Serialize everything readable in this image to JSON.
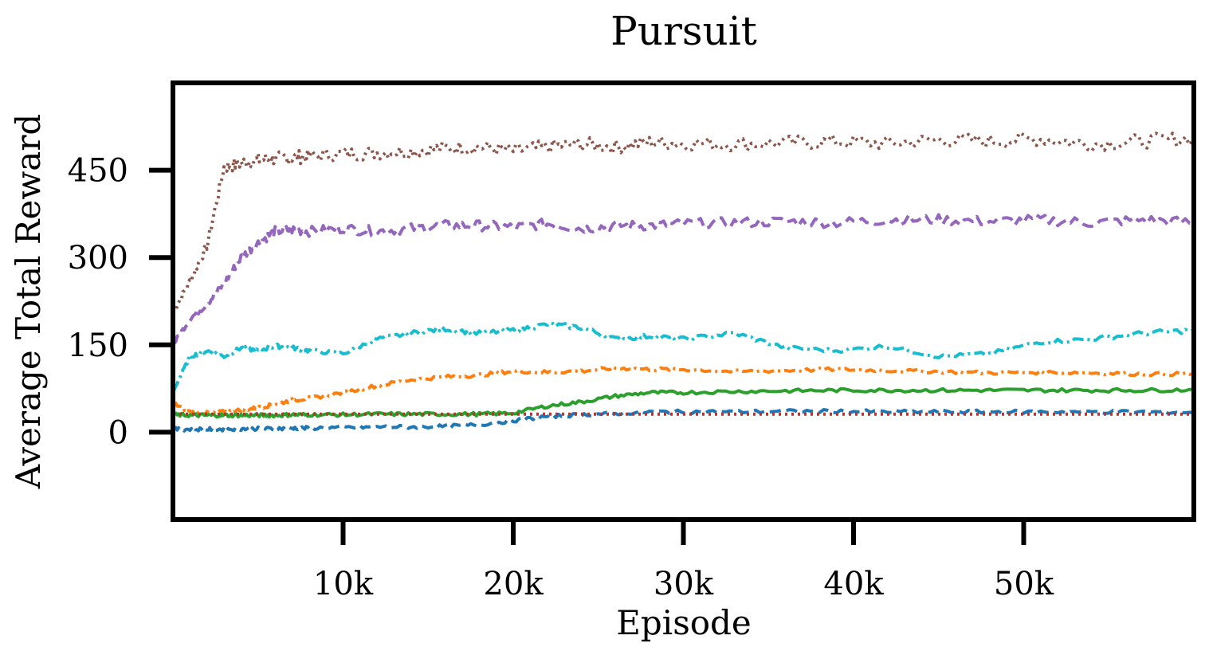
{
  "chart_data": {
    "type": "line",
    "title": "Pursuit",
    "xlabel": "Episode",
    "ylabel": "Average Total Reward",
    "xlim": [
      0,
      60000
    ],
    "ylim": [
      -150,
      600
    ],
    "xticks": [
      10000,
      20000,
      30000,
      40000,
      50000
    ],
    "xtick_labels": [
      "10k",
      "20k",
      "30k",
      "40k",
      "50k"
    ],
    "yticks": [
      0,
      150,
      300,
      450
    ],
    "ytick_labels": [
      "0",
      "150",
      "300",
      "450"
    ],
    "grid": false,
    "legend": false,
    "x": [
      0,
      1000,
      2000,
      3000,
      4000,
      5000,
      6000,
      7000,
      8000,
      10000,
      12000,
      14000,
      16000,
      18000,
      20000,
      22000,
      24000,
      26000,
      28000,
      30000,
      33000,
      36000,
      39000,
      42000,
      45000,
      48000,
      51000,
      54000,
      57000,
      60000
    ],
    "series": [
      {
        "color": "#8c564b",
        "dash": "dotted",
        "values": [
          205,
          260,
          320,
          455,
          462,
          468,
          470,
          472,
          474,
          478,
          480,
          483,
          488,
          490,
          483,
          490,
          495,
          490,
          498,
          496,
          495,
          497,
          499,
          496,
          502,
          500,
          504,
          495,
          500,
          505
        ]
      },
      {
        "color": "#9467bd",
        "dash": "dashed",
        "values": [
          150,
          195,
          220,
          255,
          300,
          325,
          345,
          348,
          345,
          350,
          345,
          350,
          355,
          355,
          352,
          358,
          350,
          355,
          355,
          358,
          360,
          362,
          360,
          365,
          365,
          362,
          365,
          360,
          365,
          360
        ]
      },
      {
        "color": "#17becf",
        "dash": "dashdot",
        "values": [
          70,
          130,
          140,
          130,
          145,
          140,
          148,
          145,
          140,
          135,
          160,
          170,
          178,
          170,
          175,
          185,
          180,
          160,
          165,
          160,
          170,
          145,
          140,
          148,
          130,
          135,
          155,
          160,
          170,
          175
        ]
      },
      {
        "color": "#ff7f0e",
        "dash": "dashdot",
        "values": [
          50,
          35,
          33,
          35,
          38,
          42,
          48,
          55,
          58,
          68,
          80,
          90,
          95,
          98,
          105,
          103,
          105,
          110,
          108,
          108,
          104,
          106,
          108,
          106,
          104,
          102,
          103,
          102,
          100,
          100
        ]
      },
      {
        "color": "#2ca02c",
        "dash": "solid",
        "values": [
          30,
          29,
          29,
          29,
          29,
          29,
          29,
          30,
          30,
          30,
          31,
          31,
          31,
          31,
          33,
          45,
          52,
          62,
          68,
          68,
          70,
          71,
          72,
          72,
          72,
          72,
          72,
          72,
          72,
          73
        ]
      },
      {
        "color": "#1f77b4",
        "dash": "dashed",
        "values": [
          5,
          5,
          5,
          5,
          6,
          6,
          6,
          7,
          7,
          8,
          9,
          9,
          10,
          13,
          20,
          27,
          30,
          32,
          35,
          35,
          35,
          36,
          36,
          35,
          35,
          35,
          35,
          35,
          35,
          34
        ]
      },
      {
        "color": "#d62728",
        "dash": "dotted",
        "values": [
          31,
          31,
          31,
          31,
          31,
          31,
          31,
          31,
          31,
          31,
          31,
          31,
          31,
          31,
          31,
          31,
          31,
          31,
          31,
          31,
          31,
          31,
          31,
          31,
          31,
          31,
          31,
          31,
          31,
          31
        ]
      }
    ]
  }
}
